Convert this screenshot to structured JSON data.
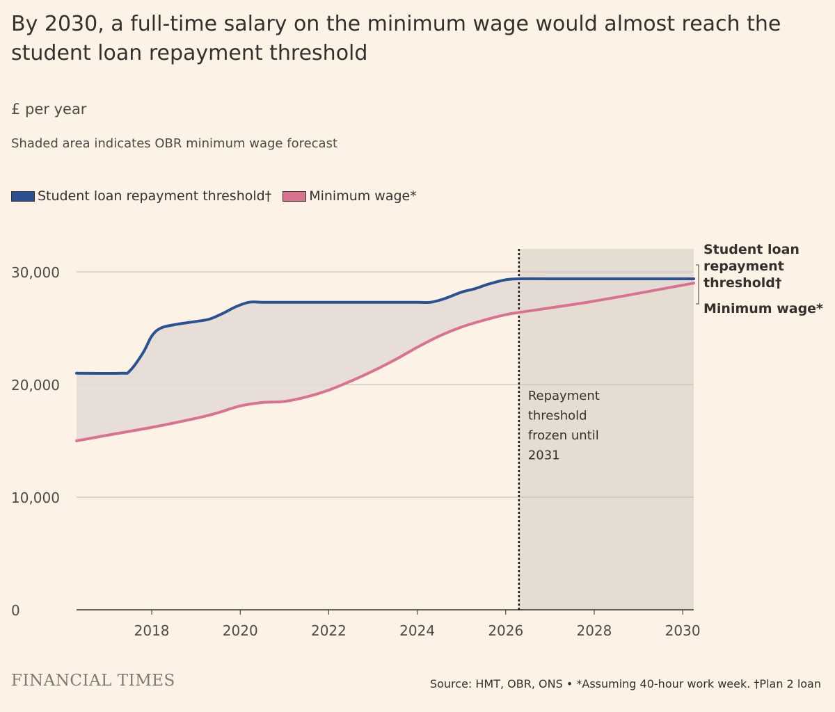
{
  "title": "By 2030, a full-time salary on the minimum wage would almost reach the student loan repayment threshold",
  "subtitle": "£ per year",
  "note": "Shaded area indicates OBR minimum wage forecast",
  "legend": [
    {
      "label": "Student loan repayment threshold†",
      "color": "#2a5293"
    },
    {
      "label": "Minimum wage*",
      "color": "#d9728f"
    }
  ],
  "annotation": {
    "lines": [
      "Repayment",
      "threshold",
      "frozen until",
      "2031"
    ]
  },
  "end_labels": {
    "threshold": [
      "Student loan",
      "repayment",
      "threshold†"
    ],
    "wage": [
      "Minimum wage*"
    ]
  },
  "brand": "FINANCIAL TIMES",
  "source": "Source: HMT, OBR, ONS • *Assuming 40-hour work week. †Plan 2 loan",
  "colors": {
    "threshold": "#2a5293",
    "wage": "#d9728f",
    "gap_fill": "#e2dbd3",
    "forecast_shade": "#e6ddd2",
    "grid": "#c3bbb2",
    "background": "#fcf2e6"
  },
  "chart_data": {
    "type": "line",
    "x_type": "year",
    "xlim": [
      2016.3,
      2030.25
    ],
    "ylim": [
      0,
      30000
    ],
    "x_ticks": [
      2018,
      2020,
      2022,
      2024,
      2026,
      2028,
      2030
    ],
    "x_tick_labels": [
      "2018",
      "2020",
      "2022",
      "2024",
      "2026",
      "2028",
      "2030"
    ],
    "y_ticks": [
      0,
      10000,
      20000,
      30000
    ],
    "y_tick_labels": [
      "0",
      "10,000",
      "20,000",
      "30,000"
    ],
    "grid": true,
    "forecast_start": 2026.3,
    "forecast_end": 2030.25,
    "frozen_marker_x": 2026.3,
    "series": [
      {
        "name": "Student loan repayment threshold†",
        "x": [
          2016.3,
          2017.3,
          2017.5,
          2017.8,
          2018.0,
          2018.2,
          2018.5,
          2019.0,
          2019.3,
          2019.6,
          2019.9,
          2020.2,
          2020.5,
          2021.0,
          2022.0,
          2023.0,
          2024.0,
          2024.3,
          2024.6,
          2025.0,
          2025.3,
          2025.6,
          2026.0,
          2026.3,
          2027.0,
          2028.0,
          2029.0,
          2030.25
        ],
        "y": [
          21000,
          21000,
          21200,
          22800,
          24300,
          25000,
          25300,
          25600,
          25800,
          26300,
          26900,
          27300,
          27300,
          27300,
          27300,
          27300,
          27300,
          27300,
          27600,
          28200,
          28500,
          28900,
          29300,
          29385,
          29385,
          29385,
          29385,
          29385
        ]
      },
      {
        "name": "Minimum wage*",
        "x": [
          2016.3,
          2017.0,
          2018.0,
          2019.0,
          2019.5,
          2020.0,
          2020.5,
          2021.0,
          2021.5,
          2022.0,
          2022.5,
          2023.0,
          2023.5,
          2024.0,
          2024.5,
          2025.0,
          2025.5,
          2026.0,
          2026.3,
          2027.0,
          2028.0,
          2029.0,
          2030.25
        ],
        "y": [
          15000,
          15500,
          16200,
          17000,
          17500,
          18100,
          18400,
          18500,
          18900,
          19500,
          20300,
          21200,
          22200,
          23300,
          24300,
          25100,
          25700,
          26200,
          26400,
          26800,
          27400,
          28100,
          29000
        ]
      }
    ]
  }
}
